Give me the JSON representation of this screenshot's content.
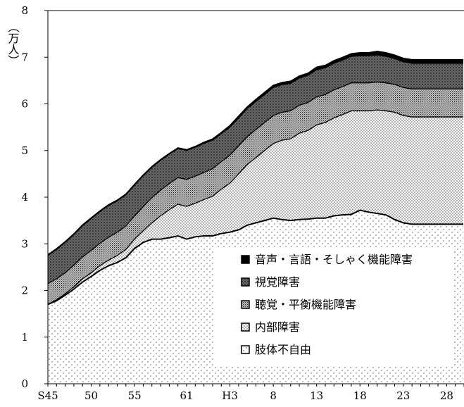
{
  "chart_data": {
    "type": "area",
    "stacked": true,
    "ylabel": "（万人）",
    "ylim": [
      0,
      8
    ],
    "y_ticks": [
      0,
      1,
      2,
      3,
      4,
      5,
      6,
      7,
      8
    ],
    "x_tick_labels": [
      {
        "year": 1970,
        "label": "S45"
      },
      {
        "year": 1975,
        "label": "50"
      },
      {
        "year": 1980,
        "label": "55"
      },
      {
        "year": 1986,
        "label": "61"
      },
      {
        "year": 1991,
        "label": "H3"
      },
      {
        "year": 1996,
        "label": "8"
      },
      {
        "year": 2001,
        "label": "13"
      },
      {
        "year": 2006,
        "label": "18"
      },
      {
        "year": 2011,
        "label": "23"
      },
      {
        "year": 2016,
        "label": "28"
      }
    ],
    "xlim": [
      1970,
      2018
    ],
    "x": [
      1970,
      1971,
      1972,
      1973,
      1974,
      1975,
      1976,
      1977,
      1978,
      1979,
      1980,
      1981,
      1982,
      1983,
      1984,
      1985,
      1986,
      1987,
      1988,
      1989,
      1990,
      1991,
      1992,
      1993,
      1994,
      1995,
      1996,
      1997,
      1998,
      1999,
      2000,
      2001,
      2002,
      2003,
      2004,
      2005,
      2006,
      2007,
      2008,
      2009,
      2010,
      2011,
      2012,
      2013,
      2014,
      2015,
      2016,
      2017,
      2018
    ],
    "legend_position": "bottom-right",
    "grid": false,
    "series": [
      {
        "name": "肢体不自由",
        "pattern": "sparse-dots",
        "values": [
          1.7,
          1.78,
          1.9,
          2.03,
          2.18,
          2.3,
          2.43,
          2.53,
          2.6,
          2.7,
          2.9,
          3.03,
          3.1,
          3.1,
          3.13,
          3.17,
          3.1,
          3.15,
          3.17,
          3.17,
          3.22,
          3.25,
          3.3,
          3.4,
          3.45,
          3.5,
          3.55,
          3.52,
          3.5,
          3.52,
          3.53,
          3.55,
          3.55,
          3.6,
          3.62,
          3.63,
          3.72,
          3.68,
          3.65,
          3.62,
          3.52,
          3.45,
          3.42,
          3.42,
          3.42,
          3.42,
          3.42,
          3.42,
          3.42
        ]
      },
      {
        "name": "内部障害",
        "pattern": "medium-dots",
        "values": [
          0.0,
          0.02,
          0.03,
          0.05,
          0.07,
          0.08,
          0.1,
          0.12,
          0.15,
          0.18,
          0.2,
          0.25,
          0.35,
          0.5,
          0.6,
          0.68,
          0.7,
          0.72,
          0.78,
          0.85,
          0.95,
          1.05,
          1.2,
          1.3,
          1.4,
          1.5,
          1.6,
          1.7,
          1.75,
          1.85,
          1.9,
          2.0,
          2.05,
          2.1,
          2.15,
          2.22,
          2.13,
          2.17,
          2.22,
          2.23,
          2.3,
          2.3,
          2.3,
          2.3,
          2.3,
          2.3,
          2.3,
          2.3,
          2.3
        ]
      },
      {
        "name": "聴覚・平衡機能障害",
        "pattern": "dense-dots",
        "values": [
          0.45,
          0.45,
          0.45,
          0.46,
          0.47,
          0.48,
          0.48,
          0.49,
          0.5,
          0.5,
          0.5,
          0.52,
          0.54,
          0.55,
          0.56,
          0.57,
          0.58,
          0.58,
          0.58,
          0.59,
          0.59,
          0.6,
          0.6,
          0.6,
          0.6,
          0.6,
          0.6,
          0.6,
          0.6,
          0.6,
          0.6,
          0.6,
          0.6,
          0.6,
          0.6,
          0.6,
          0.6,
          0.6,
          0.6,
          0.6,
          0.6,
          0.6,
          0.6,
          0.6,
          0.6,
          0.6,
          0.6,
          0.6,
          0.6
        ]
      },
      {
        "name": "視覚障害",
        "pattern": "crosshatch",
        "values": [
          0.6,
          0.63,
          0.65,
          0.66,
          0.67,
          0.68,
          0.68,
          0.68,
          0.67,
          0.67,
          0.66,
          0.66,
          0.65,
          0.64,
          0.63,
          0.62,
          0.62,
          0.62,
          0.62,
          0.61,
          0.6,
          0.6,
          0.6,
          0.6,
          0.6,
          0.6,
          0.6,
          0.59,
          0.59,
          0.58,
          0.58,
          0.58,
          0.57,
          0.57,
          0.57,
          0.57,
          0.58,
          0.58,
          0.58,
          0.57,
          0.55,
          0.55,
          0.55,
          0.55,
          0.55,
          0.55,
          0.55,
          0.55,
          0.55
        ]
      },
      {
        "name": "音声・言語・そしゃく機能障害",
        "pattern": "solid-black",
        "values": [
          0.02,
          0.02,
          0.02,
          0.02,
          0.02,
          0.02,
          0.02,
          0.02,
          0.02,
          0.02,
          0.02,
          0.02,
          0.02,
          0.02,
          0.02,
          0.02,
          0.02,
          0.02,
          0.03,
          0.03,
          0.03,
          0.04,
          0.04,
          0.04,
          0.05,
          0.05,
          0.05,
          0.05,
          0.05,
          0.05,
          0.05,
          0.06,
          0.06,
          0.06,
          0.06,
          0.06,
          0.07,
          0.07,
          0.08,
          0.08,
          0.08,
          0.08,
          0.08,
          0.08,
          0.08,
          0.08,
          0.08,
          0.08,
          0.08
        ]
      }
    ]
  },
  "legend_order": [
    "音声・言語・そしゃく機能障害",
    "視覚障害",
    "聴覚・平衡機能障害",
    "内部障害",
    "肢体不自由"
  ]
}
